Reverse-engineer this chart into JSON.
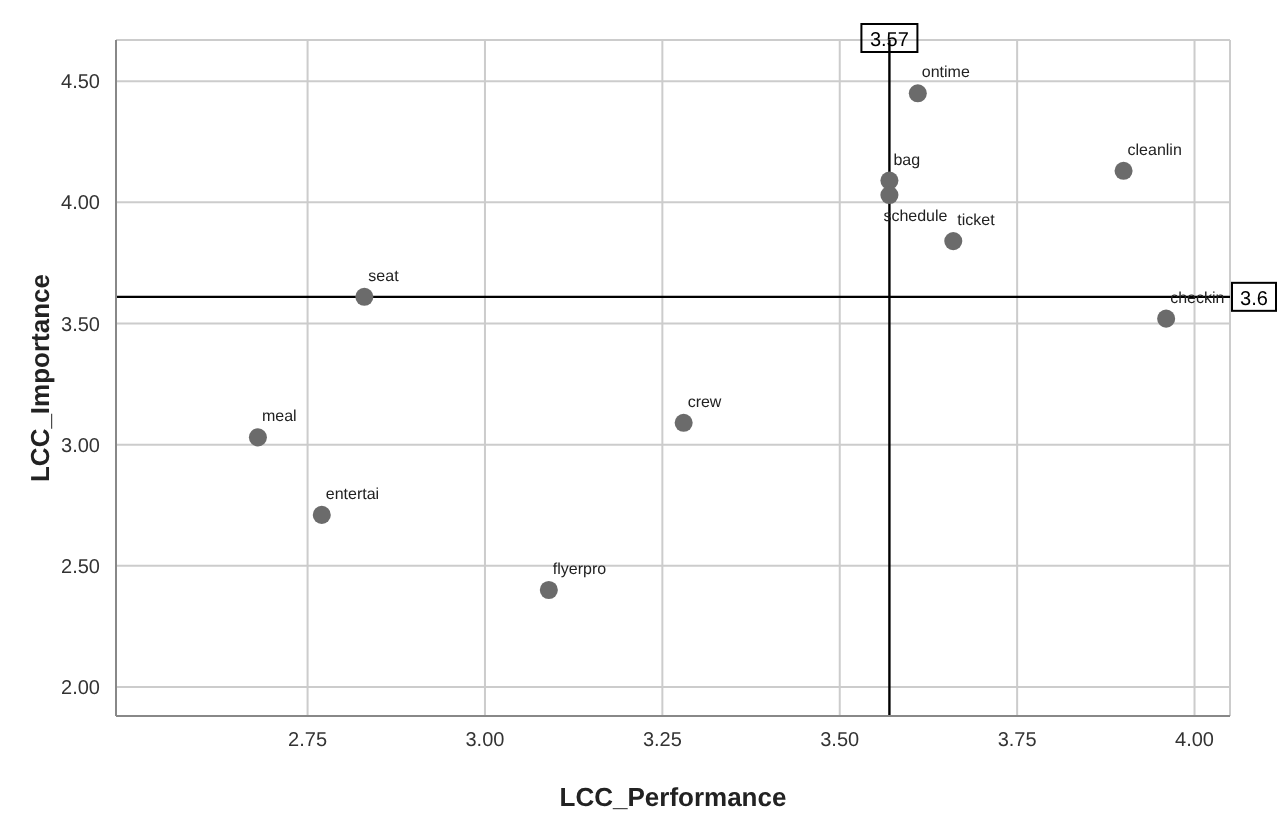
{
  "chart_data": {
    "type": "scatter",
    "xlabel": "LCC_Performance",
    "ylabel": "LCC_Importance",
    "x": [
      3.61,
      3.57,
      3.57,
      3.9,
      3.66,
      3.96,
      2.83,
      2.68,
      2.77,
      3.28,
      3.09
    ],
    "values": [
      4.45,
      4.09,
      4.03,
      4.13,
      3.84,
      3.52,
      3.61,
      3.03,
      2.71,
      3.09,
      2.4
    ],
    "color": "#6b6b6b",
    "marker": "circle",
    "grid": true,
    "xlim": [
      2.48,
      4.05
    ],
    "xticks": [
      {
        "value": 2.75,
        "label": "2.75"
      },
      {
        "value": 3,
        "label": "3.00"
      },
      {
        "value": 3.25,
        "label": "3.25"
      },
      {
        "value": 3.5,
        "label": "3.50"
      },
      {
        "value": 3.75,
        "label": "3.75"
      },
      {
        "value": 4,
        "label": "4.00"
      }
    ],
    "ylim": [
      1.88,
      4.67
    ],
    "yticks": [
      {
        "value": 2,
        "label": "2.00"
      },
      {
        "value": 2.5,
        "label": "2.50"
      },
      {
        "value": 3,
        "label": "3.00"
      },
      {
        "value": 3.5,
        "label": "3.50"
      },
      {
        "value": 4,
        "label": "4.00"
      },
      {
        "value": 4.5,
        "label": "4.50"
      }
    ],
    "ref_lines": [
      {
        "axis": "x",
        "value": 3.57,
        "label": "3.57",
        "color": "#000000"
      },
      {
        "axis": "y",
        "value": 3.61,
        "label": "3.6",
        "color": "#000000"
      }
    ],
    "annotations": [
      {
        "text": "ontime",
        "x": 3.61,
        "y": 4.45
      },
      {
        "text": "bag",
        "x": 3.57,
        "y": 4.09
      },
      {
        "text": "schedule",
        "x": 3.57,
        "y": 4.03
      },
      {
        "text": "cleanlin",
        "x": 3.9,
        "y": 4.13
      },
      {
        "text": "ticket",
        "x": 3.66,
        "y": 3.84
      },
      {
        "text": "checkin",
        "x": 3.96,
        "y": 3.52
      },
      {
        "text": "seat",
        "x": 2.83,
        "y": 3.61
      },
      {
        "text": "meal",
        "x": 2.68,
        "y": 3.03
      },
      {
        "text": "entertai",
        "x": 2.77,
        "y": 2.71
      },
      {
        "text": "crew",
        "x": 3.28,
        "y": 3.09
      },
      {
        "text": "flyerpro",
        "x": 3.09,
        "y": 2.4
      }
    ]
  }
}
